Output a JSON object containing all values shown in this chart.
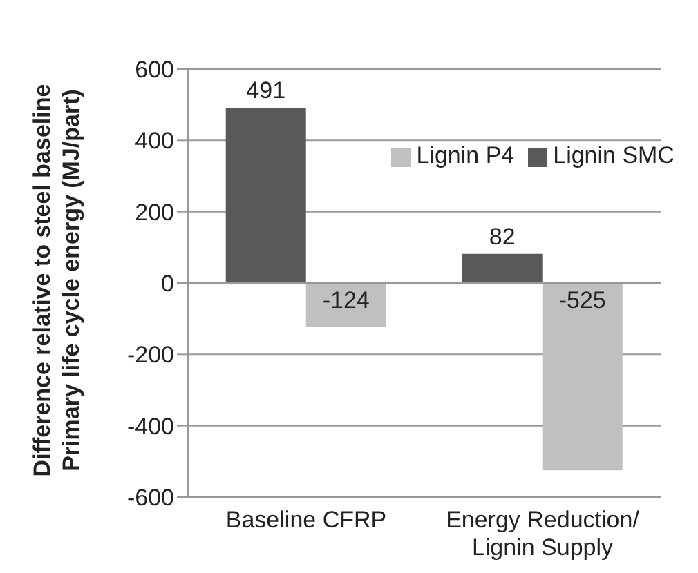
{
  "chart_data": {
    "type": "bar",
    "ylabel": "Difference relative to steel baseline\nPrimary life cycle energy (MJ/part)",
    "categories": [
      "Baseline CFRP",
      "Energy Reduction/ Lignin Supply"
    ],
    "series": [
      {
        "name": "Lignin SMC",
        "color": "#595959",
        "values": [
          491,
          82
        ]
      },
      {
        "name": "Lignin P4",
        "color": "#c0c0c0",
        "values": [
          -124,
          -525
        ]
      }
    ],
    "ylim": [
      -600,
      600
    ],
    "yticks": [
      -600,
      -400,
      -200,
      0,
      200,
      400,
      600
    ],
    "grid": "y",
    "legend": "top right",
    "data_labels": true
  }
}
